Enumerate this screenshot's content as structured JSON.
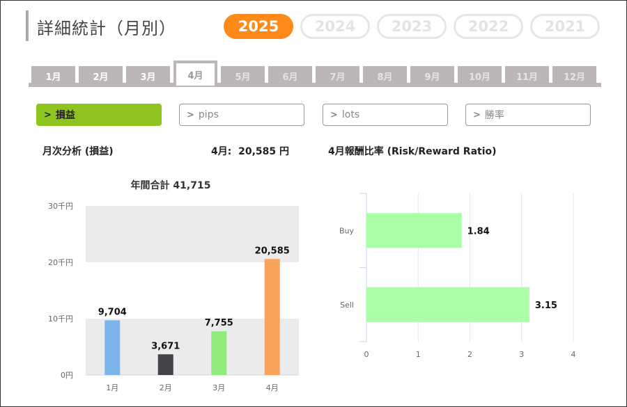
{
  "header": {
    "title": "詳細統計（月別）",
    "years": [
      {
        "label": "2025",
        "active": true
      },
      {
        "label": "2024",
        "active": false
      },
      {
        "label": "2023",
        "active": false
      },
      {
        "label": "2022",
        "active": false
      },
      {
        "label": "2021",
        "active": false
      }
    ]
  },
  "months": [
    {
      "label": "1月",
      "state": "done"
    },
    {
      "label": "2月",
      "state": "done"
    },
    {
      "label": "3月",
      "state": "done"
    },
    {
      "label": "4月",
      "state": "active"
    },
    {
      "label": "5月",
      "state": "future"
    },
    {
      "label": "6月",
      "state": "future"
    },
    {
      "label": "7月",
      "state": "future"
    },
    {
      "label": "8月",
      "state": "future"
    },
    {
      "label": "9月",
      "state": "future"
    },
    {
      "label": "10月",
      "state": "future"
    },
    {
      "label": "11月",
      "state": "future"
    },
    {
      "label": "12月",
      "state": "future"
    }
  ],
  "filters": [
    {
      "label": "損益",
      "active": true
    },
    {
      "label": "pips",
      "active": false
    },
    {
      "label": "lots",
      "active": false
    },
    {
      "label": "勝率",
      "active": false
    }
  ],
  "monthly": {
    "heading": "月次分析 (損益)",
    "current_label": "4月:",
    "current_value": "20,585 円"
  },
  "rr": {
    "heading": "4月報酬比率 (Risk/Reward Ratio)"
  },
  "colors": {
    "accent_orange": "#ff8a1a",
    "accent_green": "#8fc31f",
    "tab_gray": "#bdb6b6"
  },
  "chart_data": [
    {
      "type": "bar",
      "title": "年間合計 41,715",
      "categories": [
        "1月",
        "2月",
        "3月",
        "4月"
      ],
      "values": [
        9704,
        3671,
        7755,
        20585
      ],
      "value_labels": [
        "9,704",
        "3,671",
        "7,755",
        "20,585"
      ],
      "colors": [
        "#7cb5ec",
        "#434348",
        "#90ed7d",
        "#f7a35c"
      ],
      "ylim": [
        0,
        30000
      ],
      "yticks": [
        {
          "value": 0,
          "label": "0円"
        },
        {
          "value": 10000,
          "label": "10千円"
        },
        {
          "value": 20000,
          "label": "20千円"
        },
        {
          "value": 30000,
          "label": "30千円"
        }
      ],
      "grid": "alternating bands"
    },
    {
      "type": "bar",
      "orientation": "horizontal",
      "categories": [
        "Buy",
        "Sell"
      ],
      "values": [
        1.84,
        3.15
      ],
      "value_labels": [
        "1.84",
        "3.15"
      ],
      "color": "#a8ffa8",
      "xlim": [
        0,
        4
      ],
      "xticks": [
        "0",
        "1",
        "2",
        "3",
        "4"
      ],
      "grid": true
    }
  ]
}
